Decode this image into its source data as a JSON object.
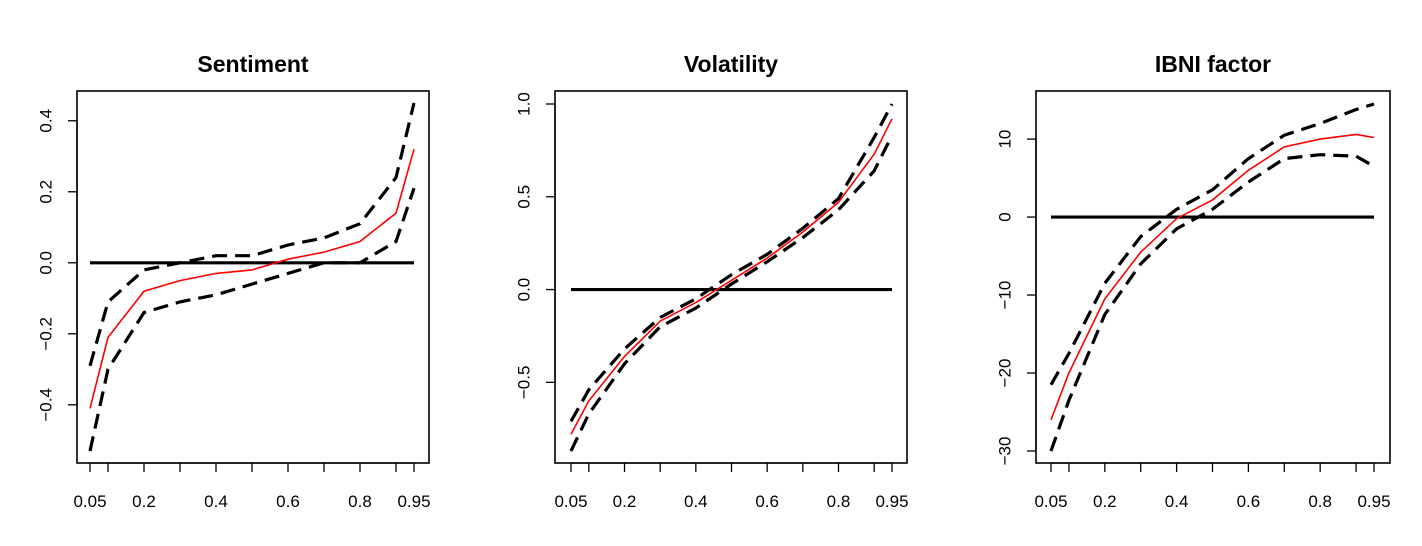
{
  "colors": {
    "estimate": "#ff0000",
    "band": "#000000",
    "zero_line": "#000000"
  },
  "chart_data": [
    {
      "type": "line",
      "title": "Sentiment",
      "xlabel": "",
      "ylabel": "",
      "x": [
        0.05,
        0.1,
        0.2,
        0.3,
        0.4,
        0.5,
        0.6,
        0.7,
        0.8,
        0.9,
        0.95
      ],
      "xticks": [
        "0.05",
        "0.2",
        "0.4",
        "0.6",
        "0.8",
        "0.95"
      ],
      "yticks": [
        "-0.4",
        "-0.2",
        "0.0",
        "0.2",
        "0.4"
      ],
      "xlim": [
        0.05,
        0.95
      ],
      "ylim": [
        -0.53,
        0.45
      ],
      "hline": 0,
      "series": [
        {
          "role": "estimate",
          "style": "solid-red",
          "values": [
            -0.41,
            -0.21,
            -0.08,
            -0.05,
            -0.03,
            -0.02,
            0.01,
            0.03,
            0.06,
            0.14,
            0.32
          ]
        },
        {
          "role": "upper",
          "style": "dashed-black",
          "values": [
            -0.29,
            -0.11,
            -0.02,
            0.0,
            0.02,
            0.02,
            0.05,
            0.07,
            0.11,
            0.24,
            0.45
          ]
        },
        {
          "role": "lower",
          "style": "dashed-black",
          "values": [
            -0.53,
            -0.3,
            -0.14,
            -0.11,
            -0.09,
            -0.06,
            -0.03,
            0.0,
            0.0,
            0.06,
            0.21
          ]
        }
      ]
    },
    {
      "type": "line",
      "title": "Volatility",
      "xlabel": "",
      "ylabel": "",
      "x": [
        0.05,
        0.1,
        0.2,
        0.3,
        0.4,
        0.5,
        0.6,
        0.7,
        0.8,
        0.9,
        0.95
      ],
      "xticks": [
        "0.05",
        "0.2",
        "0.4",
        "0.6",
        "0.8",
        "0.95"
      ],
      "yticks": [
        "-0.5",
        "0.0",
        "0.5",
        "1.0"
      ],
      "xlim": [
        0.05,
        0.95
      ],
      "ylim": [
        -0.87,
        1.0
      ],
      "hline": 0,
      "series": [
        {
          "role": "estimate",
          "style": "solid-red",
          "values": [
            -0.78,
            -0.6,
            -0.36,
            -0.17,
            -0.07,
            0.05,
            0.17,
            0.31,
            0.47,
            0.73,
            0.92
          ]
        },
        {
          "role": "upper",
          "style": "dashed-black",
          "values": [
            -0.71,
            -0.54,
            -0.32,
            -0.15,
            -0.05,
            0.08,
            0.19,
            0.33,
            0.49,
            0.82,
            1.0
          ]
        },
        {
          "role": "lower",
          "style": "dashed-black",
          "values": [
            -0.87,
            -0.67,
            -0.4,
            -0.2,
            -0.1,
            0.03,
            0.15,
            0.28,
            0.43,
            0.64,
            0.83
          ]
        }
      ]
    },
    {
      "type": "line",
      "title": "IBNI factor",
      "xlabel": "",
      "ylabel": "",
      "x": [
        0.05,
        0.1,
        0.2,
        0.3,
        0.4,
        0.5,
        0.6,
        0.7,
        0.8,
        0.9,
        0.95
      ],
      "xticks": [
        "0.05",
        "0.2",
        "0.4",
        "0.6",
        "0.8",
        "0.95"
      ],
      "yticks": [
        "-30",
        "-20",
        "-10",
        "0",
        "10"
      ],
      "xlim": [
        0.05,
        0.95
      ],
      "ylim": [
        -30,
        14.5
      ],
      "hline": 0,
      "series": [
        {
          "role": "estimate",
          "style": "solid-red",
          "values": [
            -26,
            -20,
            -10.5,
            -4.5,
            -0.2,
            2.2,
            6.0,
            9.0,
            10.0,
            10.6,
            10.2
          ]
        },
        {
          "role": "upper",
          "style": "dashed-black",
          "values": [
            -21.5,
            -17.5,
            -8.5,
            -2.5,
            1.0,
            3.5,
            7.5,
            10.5,
            12.0,
            13.8,
            14.5
          ]
        },
        {
          "role": "lower",
          "style": "dashed-black",
          "values": [
            -30,
            -23.5,
            -12.5,
            -6.0,
            -1.5,
            1.0,
            4.5,
            7.5,
            8.0,
            7.8,
            6.5
          ]
        }
      ]
    }
  ]
}
